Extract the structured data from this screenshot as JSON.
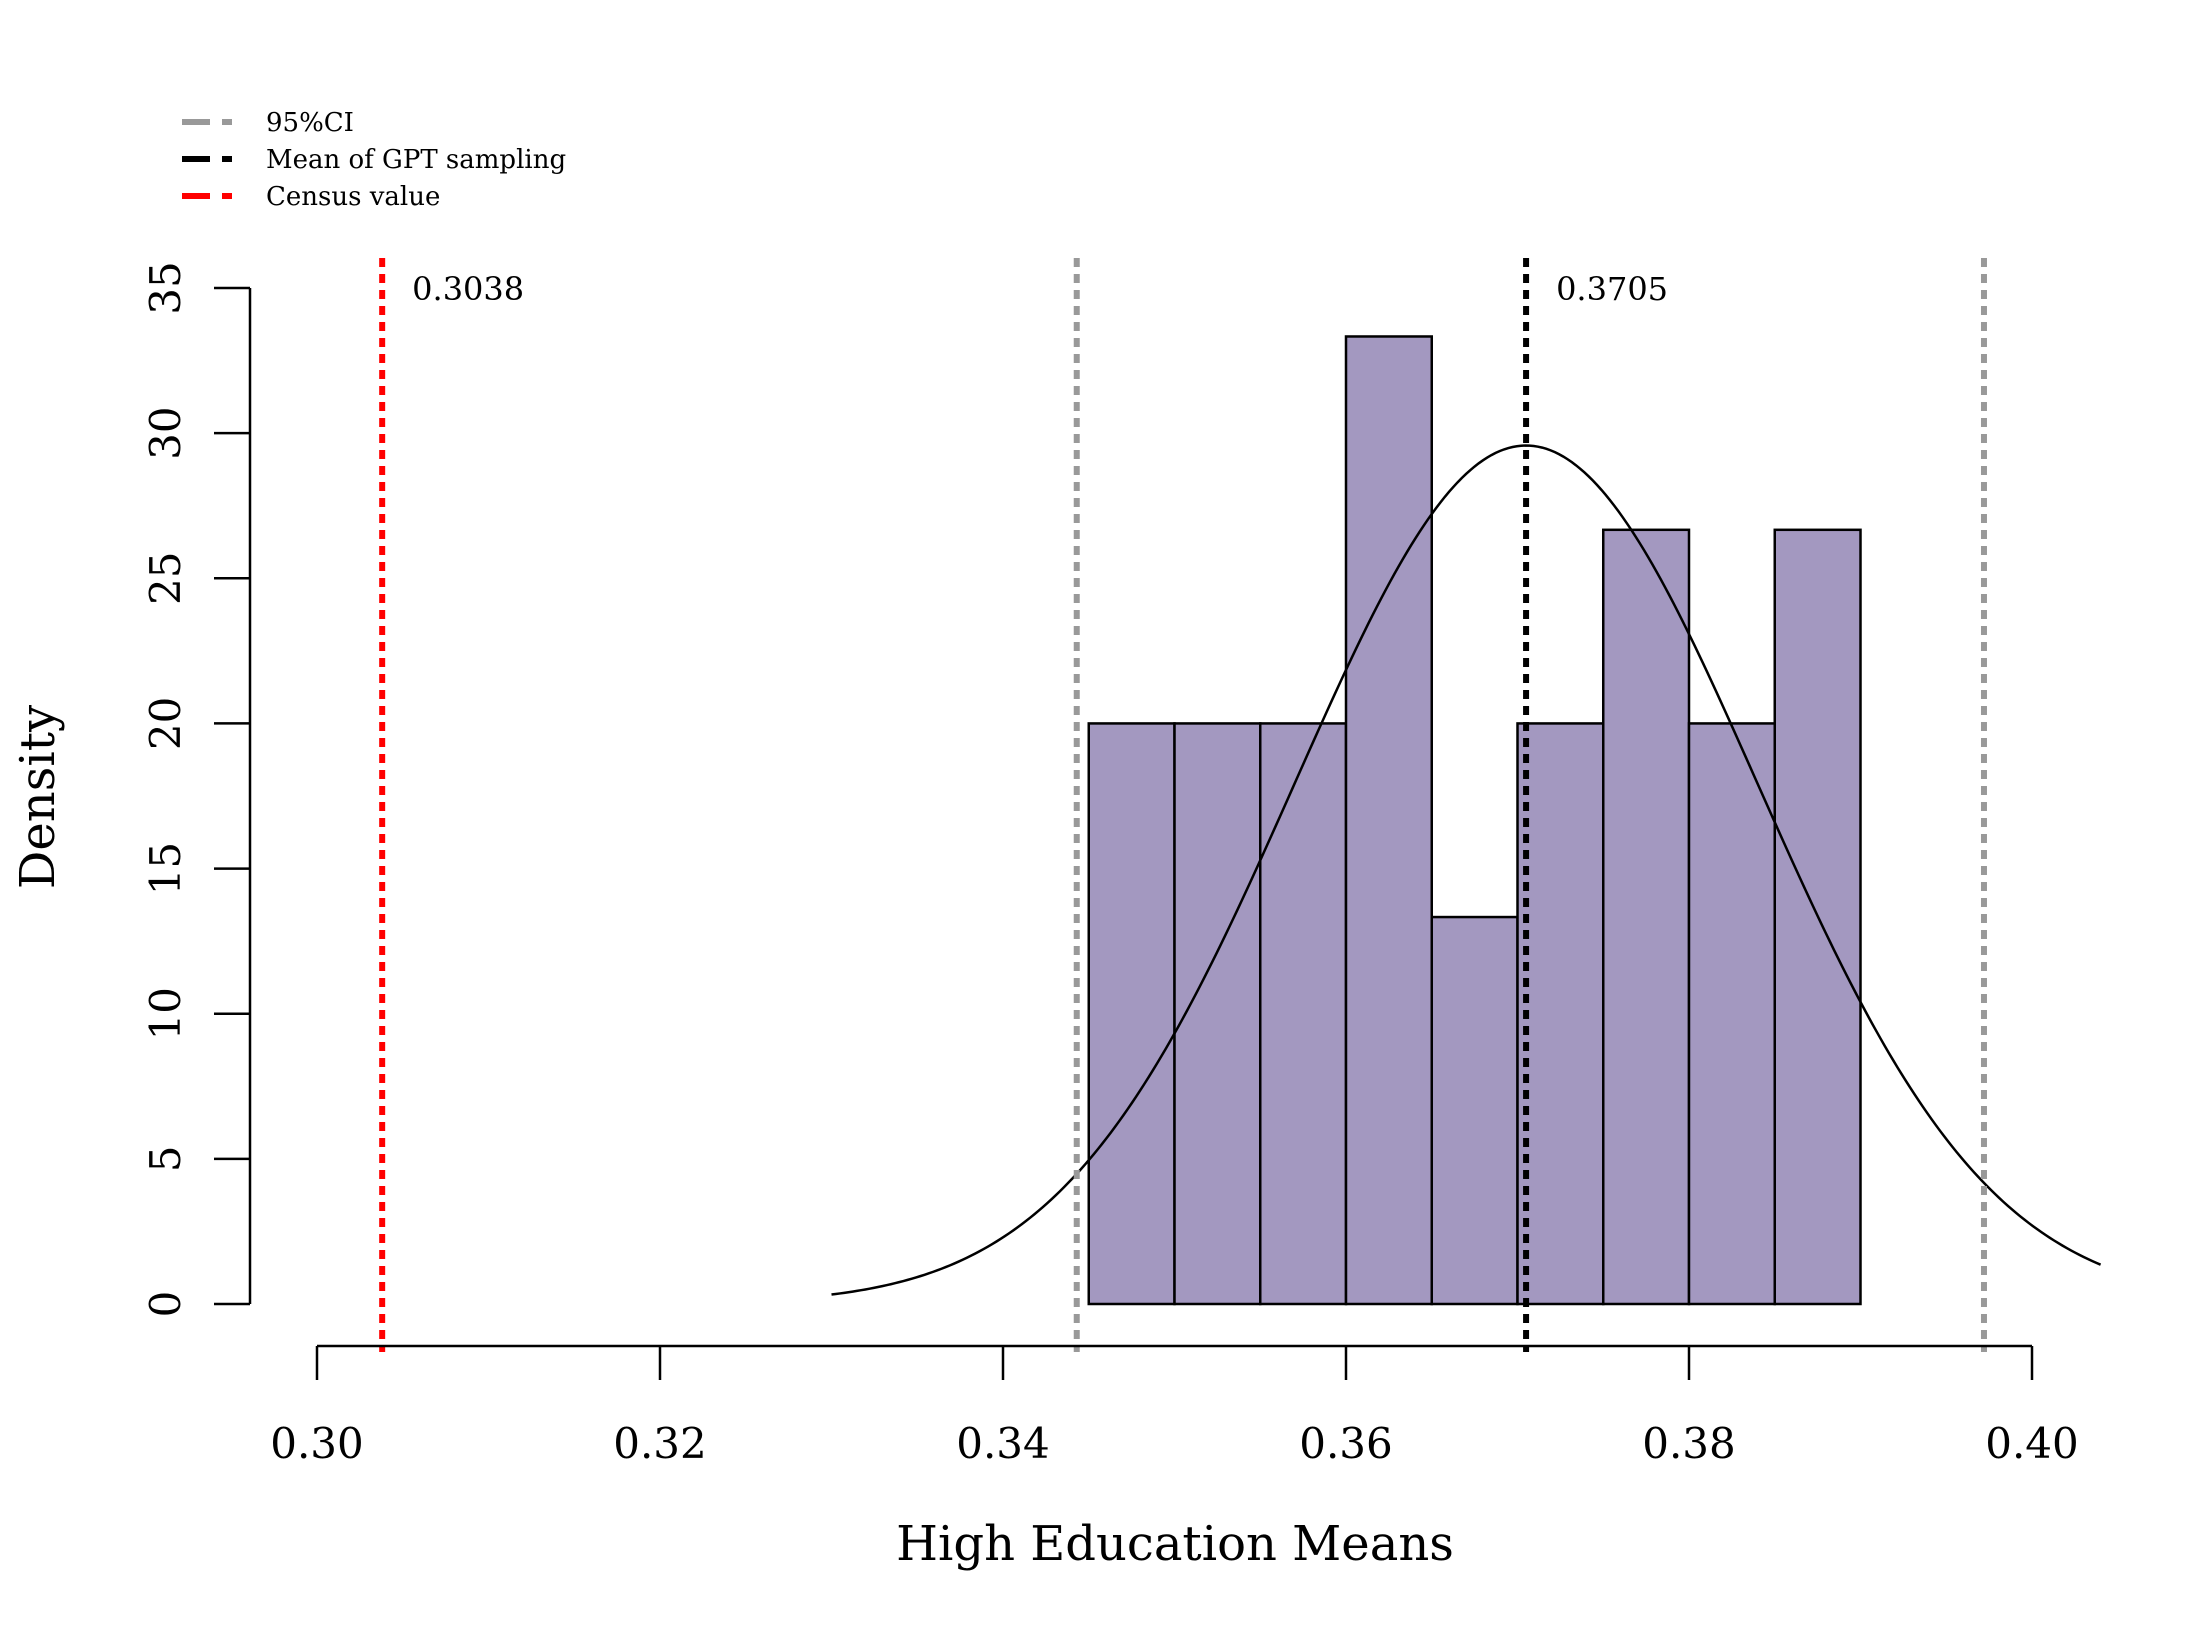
{
  "chart_data": {
    "type": "histogram",
    "title": "",
    "xlabel": "High Education Means",
    "ylabel": "Density",
    "xlim": [
      0.3,
      0.4
    ],
    "ylim": [
      0,
      35
    ],
    "x_ticks": [
      0.3,
      0.32,
      0.34,
      0.36,
      0.38,
      0.4
    ],
    "x_tick_labels": [
      "0.30",
      "0.32",
      "0.34",
      "0.36",
      "0.38",
      "0.40"
    ],
    "y_ticks": [
      0,
      5,
      10,
      15,
      20,
      25,
      30,
      35
    ],
    "y_tick_labels": [
      "0",
      "5",
      "10",
      "15",
      "20",
      "25",
      "30",
      "35"
    ],
    "bars": [
      {
        "x0": 0.345,
        "x1": 0.35,
        "density": 20.0
      },
      {
        "x0": 0.35,
        "x1": 0.355,
        "density": 20.0
      },
      {
        "x0": 0.355,
        "x1": 0.36,
        "density": 20.0
      },
      {
        "x0": 0.36,
        "x1": 0.365,
        "density": 33.33
      },
      {
        "x0": 0.365,
        "x1": 0.37,
        "density": 13.33
      },
      {
        "x0": 0.37,
        "x1": 0.375,
        "density": 20.0
      },
      {
        "x0": 0.375,
        "x1": 0.38,
        "density": 26.67
      },
      {
        "x0": 0.38,
        "x1": 0.385,
        "density": 20.0
      },
      {
        "x0": 0.385,
        "x1": 0.39,
        "density": 26.67
      }
    ],
    "bar_color": "#a398c0",
    "normal_curve": {
      "mean": 0.3705,
      "sd": 0.01349,
      "x_start": 0.33,
      "x_end": 0.404,
      "color": "#000000"
    },
    "reference_lines": [
      {
        "name": "95%CI",
        "x": 0.3443,
        "color": "#999999",
        "label": ""
      },
      {
        "name": "95%CI",
        "x": 0.3972,
        "color": "#999999",
        "label": ""
      },
      {
        "name": "Mean of GPT sampling",
        "x": 0.3705,
        "color": "#000000",
        "label": "0.3705"
      },
      {
        "name": "Census value",
        "x": 0.3038,
        "color": "#ff0000",
        "label": "0.3038"
      }
    ],
    "legend": {
      "placement": "top-left",
      "entries": [
        {
          "label": "95%CI",
          "color": "#999999"
        },
        {
          "label": "Mean of GPT sampling",
          "color": "#000000"
        },
        {
          "label": "Census value",
          "color": "#ff0000"
        }
      ]
    }
  }
}
